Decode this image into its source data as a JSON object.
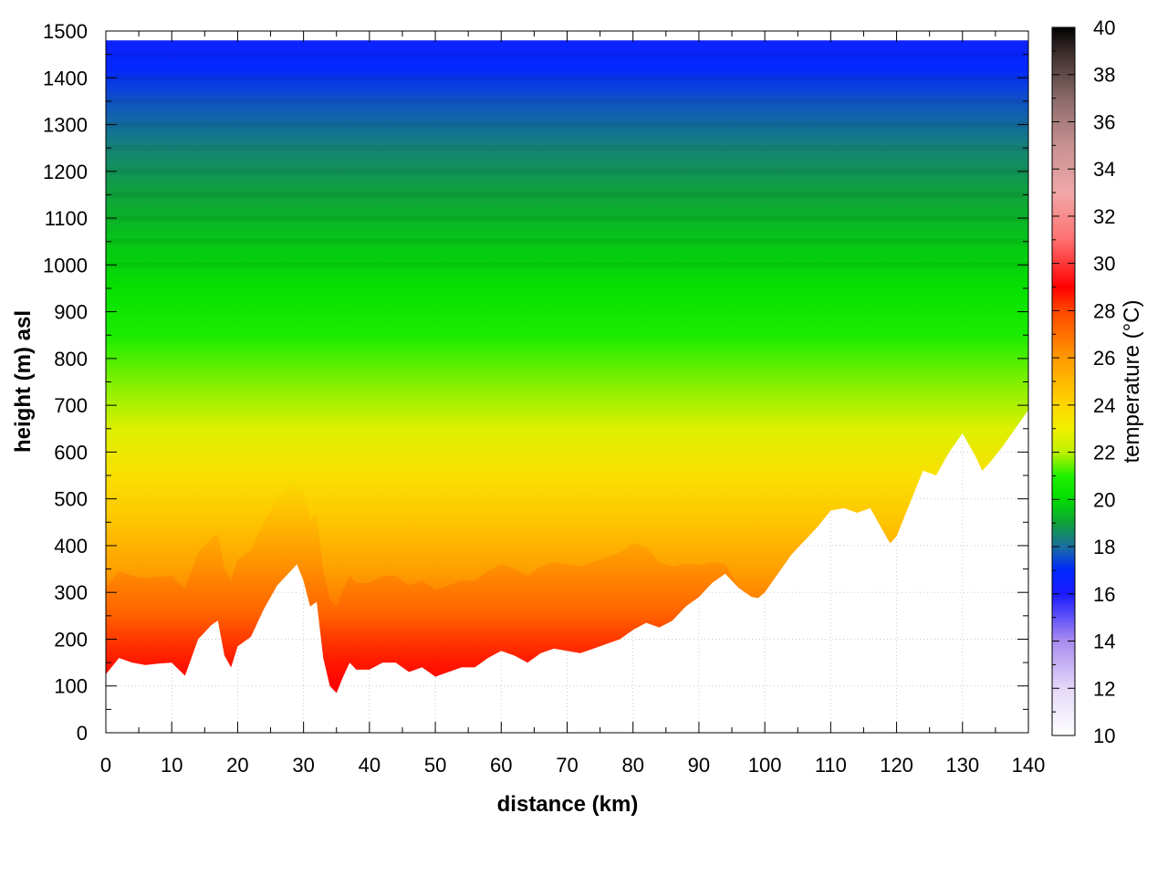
{
  "chart_data": {
    "type": "heatmap",
    "title": "",
    "xlabel": "distance (km)",
    "ylabel": "height (m) asl",
    "colorbar_label": "temperature (°C)",
    "xlim": [
      0,
      140
    ],
    "ylim": [
      0,
      1500
    ],
    "clim": [
      10,
      40
    ],
    "grid": true,
    "x_ticks": [
      "0",
      "10",
      "20",
      "30",
      "40",
      "50",
      "60",
      "70",
      "80",
      "90",
      "100",
      "110",
      "120",
      "130",
      "140"
    ],
    "y_ticks": [
      "0",
      "100",
      "200",
      "300",
      "400",
      "500",
      "600",
      "700",
      "800",
      "900",
      "1000",
      "1100",
      "1200",
      "1300",
      "1400",
      "1500"
    ],
    "colorbar_ticks": [
      "10",
      "12",
      "14",
      "16",
      "18",
      "20",
      "22",
      "24",
      "26",
      "28",
      "30",
      "32",
      "34",
      "36",
      "38",
      "40"
    ],
    "terrain_profile": {
      "distance_km": [
        0,
        2,
        4,
        6,
        8,
        10,
        12,
        14,
        16,
        17,
        18,
        19,
        20,
        22,
        24,
        26,
        28,
        29,
        30,
        31,
        32,
        33,
        34,
        35,
        36,
        37,
        38,
        40,
        42,
        44,
        46,
        48,
        50,
        52,
        54,
        56,
        58,
        60,
        62,
        64,
        66,
        68,
        70,
        72,
        74,
        76,
        78,
        80,
        82,
        84,
        86,
        88,
        90,
        92,
        94,
        96,
        98,
        99,
        100,
        102,
        104,
        106,
        108,
        110,
        112,
        114,
        116,
        118,
        119,
        120,
        122,
        124,
        126,
        128,
        130,
        132,
        133,
        134,
        136,
        138,
        140
      ],
      "height_m": [
        125,
        160,
        150,
        145,
        148,
        150,
        122,
        200,
        230,
        240,
        165,
        140,
        185,
        205,
        265,
        315,
        345,
        360,
        325,
        270,
        280,
        160,
        100,
        85,
        120,
        150,
        135,
        135,
        150,
        150,
        130,
        140,
        120,
        130,
        140,
        140,
        160,
        175,
        165,
        150,
        170,
        180,
        175,
        170,
        180,
        190,
        200,
        220,
        235,
        225,
        240,
        270,
        290,
        320,
        340,
        310,
        290,
        288,
        300,
        340,
        380,
        410,
        440,
        475,
        480,
        470,
        480,
        430,
        405,
        420,
        490,
        560,
        550,
        600,
        640,
        590,
        560,
        575,
        610,
        650,
        690
      ]
    },
    "top_edge_m": 1480,
    "temperature_model": "temperature decreases with height above ground (~23 °C at 600 m, ~19 °C at 1050 m, ~16.5 °C at 1450 m), warmest (~29 °C) in the valley near ground between 30 and 75 km"
  }
}
